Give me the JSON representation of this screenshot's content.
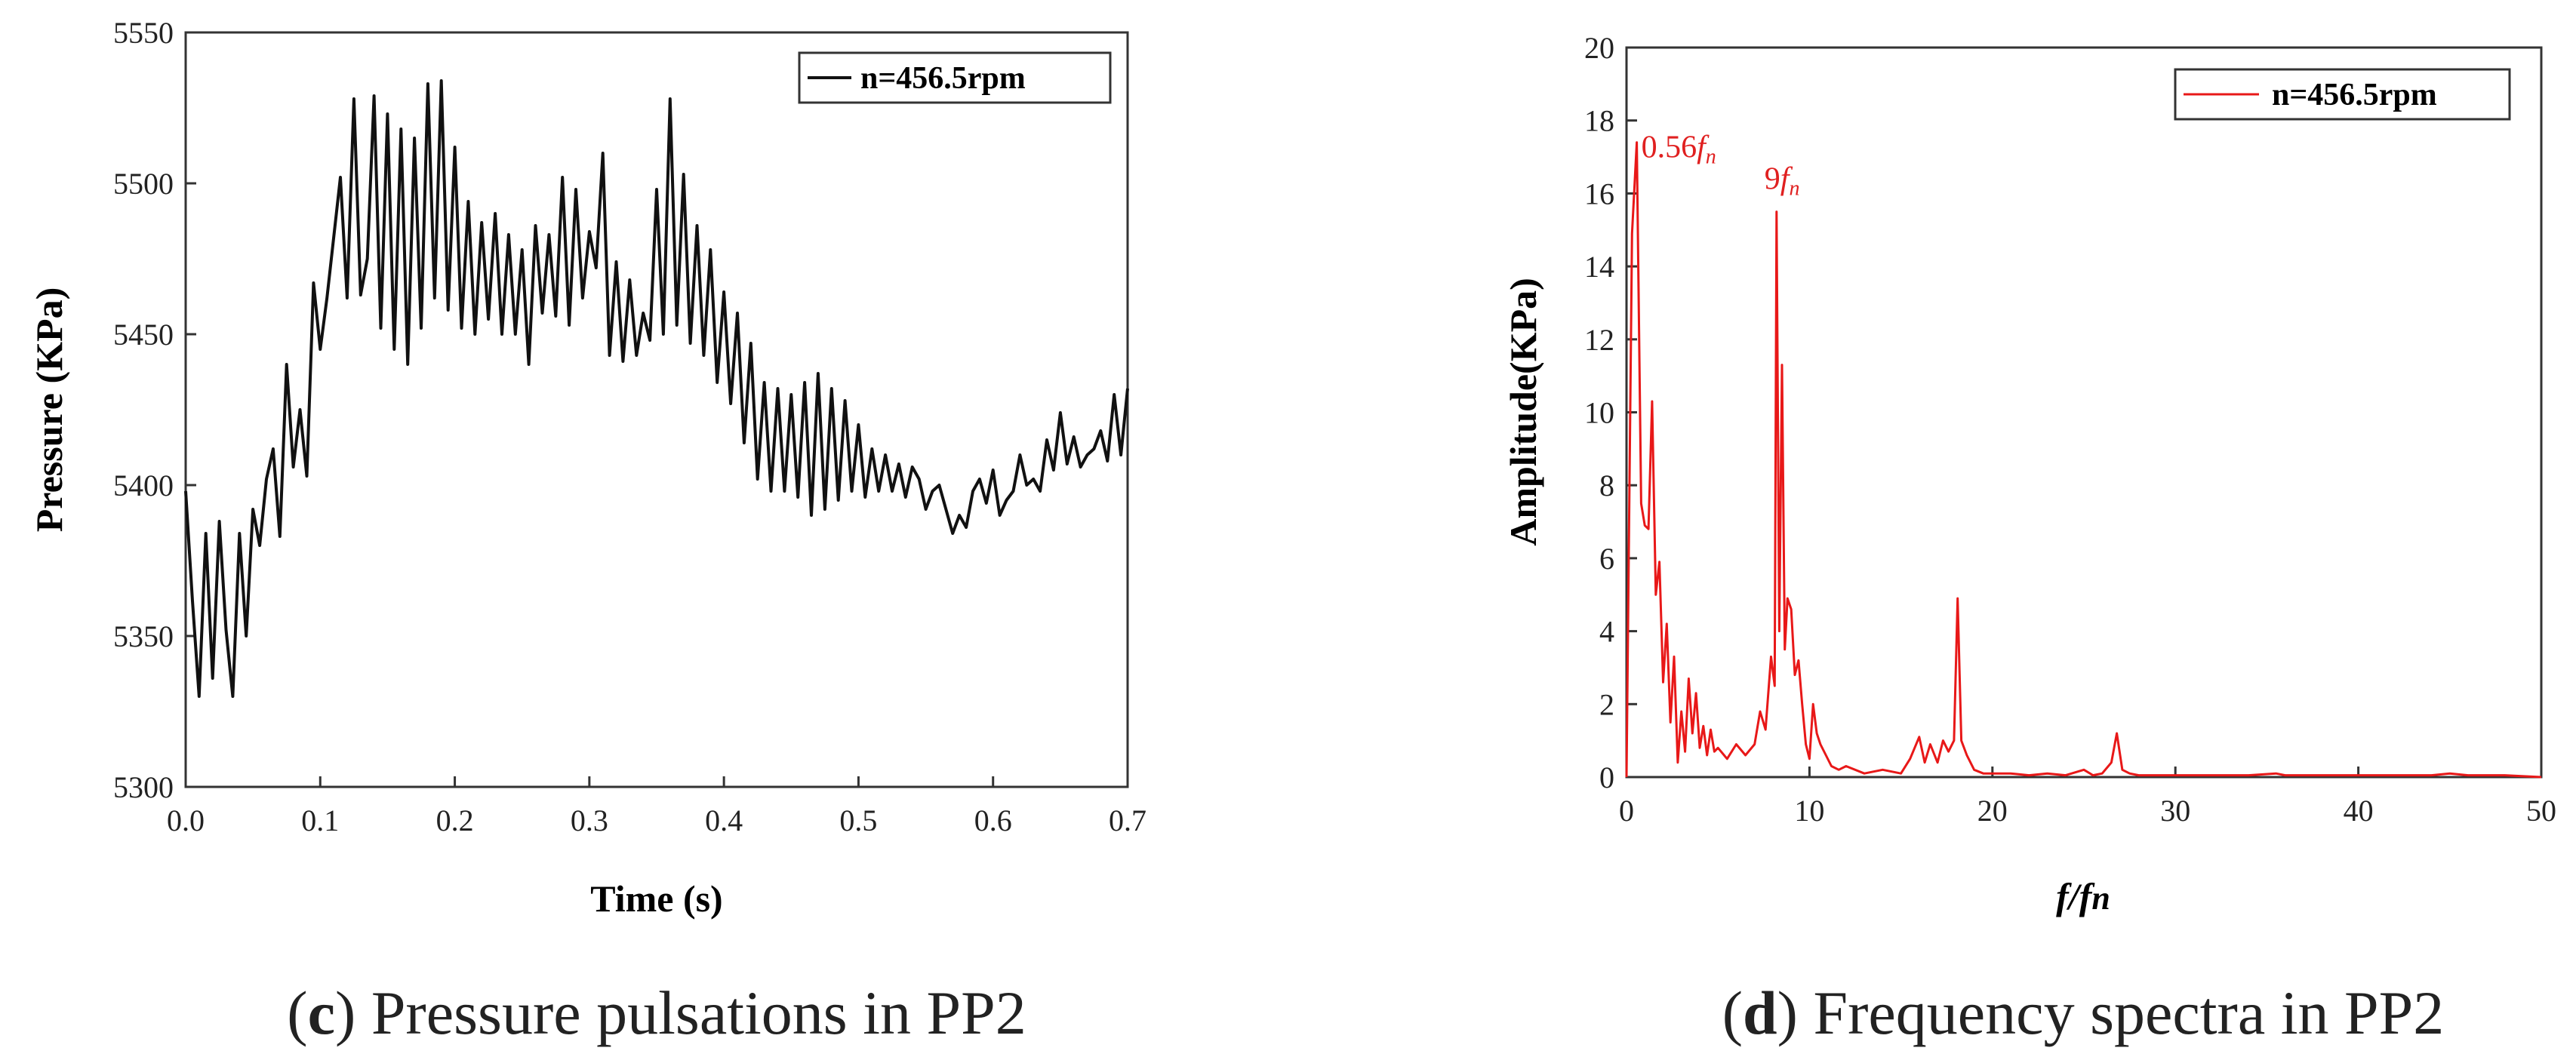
{
  "chart_data": [
    {
      "type": "line",
      "panel": "c",
      "caption_letter": "c",
      "caption_text": " Pressure pulsations in PP2",
      "xlabel": "Time (s)",
      "ylabel": "Pressure (KPa)",
      "xlim": [
        0.0,
        0.7
      ],
      "ylim": [
        5300,
        5550
      ],
      "xticks": [
        "0.0",
        "0.1",
        "0.2",
        "0.3",
        "0.4",
        "0.5",
        "0.6",
        "0.7"
      ],
      "yticks": [
        "5300",
        "5350",
        "5400",
        "5450",
        "5500",
        "5550"
      ],
      "legend_label": "n=456.5rpm",
      "line_color": "#111111",
      "series": [
        {
          "name": "n=456.5rpm",
          "x": [
            0.0,
            0.005,
            0.01,
            0.015,
            0.02,
            0.025,
            0.03,
            0.035,
            0.04,
            0.045,
            0.05,
            0.055,
            0.06,
            0.065,
            0.07,
            0.075,
            0.08,
            0.085,
            0.09,
            0.095,
            0.1,
            0.105,
            0.11,
            0.115,
            0.12,
            0.125,
            0.13,
            0.135,
            0.14,
            0.145,
            0.15,
            0.155,
            0.16,
            0.165,
            0.17,
            0.175,
            0.18,
            0.185,
            0.19,
            0.195,
            0.2,
            0.205,
            0.21,
            0.215,
            0.22,
            0.225,
            0.23,
            0.235,
            0.24,
            0.245,
            0.25,
            0.255,
            0.26,
            0.265,
            0.27,
            0.275,
            0.28,
            0.285,
            0.29,
            0.295,
            0.3,
            0.305,
            0.31,
            0.315,
            0.32,
            0.325,
            0.33,
            0.335,
            0.34,
            0.345,
            0.35,
            0.355,
            0.36,
            0.365,
            0.37,
            0.375,
            0.38,
            0.385,
            0.39,
            0.395,
            0.4,
            0.405,
            0.41,
            0.415,
            0.42,
            0.425,
            0.43,
            0.435,
            0.44,
            0.445,
            0.45,
            0.455,
            0.46,
            0.465,
            0.47,
            0.475,
            0.48,
            0.485,
            0.49,
            0.495,
            0.5,
            0.505,
            0.51,
            0.515,
            0.52,
            0.525,
            0.53,
            0.535,
            0.54,
            0.545,
            0.55,
            0.555,
            0.56,
            0.565,
            0.57,
            0.575,
            0.58,
            0.585,
            0.59,
            0.595,
            0.6,
            0.605,
            0.61,
            0.615,
            0.62,
            0.625,
            0.63,
            0.635,
            0.64,
            0.645,
            0.65,
            0.655,
            0.66,
            0.665,
            0.67,
            0.675,
            0.68,
            0.685,
            0.69,
            0.695,
            0.7
          ],
          "values": [
            5398,
            5362,
            5330,
            5384,
            5336,
            5388,
            5352,
            5330,
            5384,
            5350,
            5392,
            5380,
            5402,
            5412,
            5383,
            5440,
            5406,
            5425,
            5403,
            5467,
            5445,
            5462,
            5482,
            5502,
            5462,
            5528,
            5463,
            5475,
            5529,
            5452,
            5523,
            5445,
            5518,
            5440,
            5515,
            5452,
            5533,
            5462,
            5534,
            5458,
            5512,
            5452,
            5494,
            5450,
            5487,
            5455,
            5490,
            5450,
            5483,
            5450,
            5478,
            5440,
            5486,
            5457,
            5483,
            5456,
            5502,
            5453,
            5498,
            5462,
            5484,
            5472,
            5510,
            5443,
            5474,
            5441,
            5468,
            5443,
            5457,
            5448,
            5498,
            5450,
            5528,
            5453,
            5503,
            5447,
            5486,
            5443,
            5478,
            5434,
            5464,
            5427,
            5457,
            5414,
            5447,
            5402,
            5434,
            5398,
            5432,
            5398,
            5430,
            5396,
            5434,
            5390,
            5437,
            5392,
            5432,
            5395,
            5428,
            5398,
            5420,
            5396,
            5412,
            5398,
            5410,
            5398,
            5407,
            5396,
            5406,
            5402,
            5392,
            5398,
            5400,
            5392,
            5384,
            5390,
            5386,
            5398,
            5402,
            5394,
            5405,
            5390,
            5395,
            5398,
            5410,
            5400,
            5402,
            5398,
            5415,
            5405,
            5424,
            5407,
            5416,
            5406,
            5410,
            5412,
            5418,
            5408,
            5430,
            5410,
            5432
          ]
        }
      ]
    },
    {
      "type": "line",
      "panel": "d",
      "caption_letter": "d",
      "caption_text": " Frequency spectra in PP2",
      "xlabel_f": "f",
      "xlabel_sep": "/",
      "xlabel_fn": "f",
      "xlabel_sub": "n",
      "ylabel": "Amplitude(KPa)",
      "xlim": [
        0,
        50
      ],
      "ylim": [
        0,
        20
      ],
      "xticks": [
        "0",
        "10",
        "20",
        "30",
        "40",
        "50"
      ],
      "yticks": [
        "0",
        "2",
        "4",
        "6",
        "8",
        "10",
        "12",
        "14",
        "16",
        "18",
        "20"
      ],
      "legend_label": "n=456.5rpm",
      "line_color": "#e81818",
      "annotations": [
        {
          "coef": "0.56",
          "f": "f",
          "sub": "n",
          "x": 0.56,
          "y": 17.4
        },
        {
          "coef": "9",
          "f": "f",
          "sub": "n",
          "x": 8.2,
          "y": 15.5
        }
      ],
      "series": [
        {
          "name": "n=456.5rpm",
          "x": [
            0.0,
            0.3,
            0.56,
            0.8,
            1.0,
            1.2,
            1.4,
            1.6,
            1.8,
            2.0,
            2.2,
            2.4,
            2.6,
            2.8,
            3.0,
            3.2,
            3.4,
            3.6,
            3.8,
            4.0,
            4.2,
            4.4,
            4.6,
            4.8,
            5.0,
            5.5,
            6.0,
            6.5,
            7.0,
            7.3,
            7.6,
            7.9,
            8.1,
            8.2,
            8.35,
            8.5,
            8.65,
            8.8,
            9.0,
            9.2,
            9.4,
            9.6,
            9.8,
            10.0,
            10.2,
            10.4,
            10.6,
            10.9,
            11.2,
            11.6,
            12.0,
            13.0,
            14.0,
            15.0,
            15.5,
            16.0,
            16.3,
            16.6,
            17.0,
            17.3,
            17.6,
            17.9,
            18.1,
            18.3,
            18.6,
            19.0,
            19.5,
            20.0,
            21.0,
            22.0,
            23.0,
            24.0,
            25.0,
            25.5,
            26.0,
            26.5,
            26.8,
            27.1,
            27.5,
            28.0,
            29.0,
            30.0,
            32.0,
            34.0,
            35.5,
            36.0,
            38.0,
            40.0,
            42.0,
            44.0,
            45.0,
            46.0,
            48.0,
            50.0
          ],
          "values": [
            0.0,
            14.9,
            17.4,
            7.5,
            6.9,
            6.8,
            10.3,
            5.0,
            5.9,
            2.6,
            4.2,
            1.5,
            3.3,
            0.4,
            1.8,
            0.7,
            2.7,
            1.2,
            2.3,
            0.8,
            1.4,
            0.6,
            1.3,
            0.7,
            0.8,
            0.5,
            0.9,
            0.6,
            0.9,
            1.8,
            1.3,
            3.3,
            2.5,
            15.5,
            4.0,
            11.3,
            3.5,
            4.9,
            4.6,
            2.8,
            3.2,
            2.0,
            0.9,
            0.5,
            2.0,
            1.2,
            0.9,
            0.6,
            0.3,
            0.2,
            0.3,
            0.1,
            0.2,
            0.1,
            0.5,
            1.1,
            0.4,
            0.9,
            0.4,
            1.0,
            0.7,
            1.0,
            4.9,
            1.0,
            0.6,
            0.2,
            0.1,
            0.1,
            0.1,
            0.05,
            0.1,
            0.05,
            0.2,
            0.05,
            0.1,
            0.4,
            1.2,
            0.2,
            0.1,
            0.05,
            0.05,
            0.05,
            0.05,
            0.05,
            0.1,
            0.05,
            0.05,
            0.05,
            0.05,
            0.05,
            0.1,
            0.05,
            0.05,
            0.0
          ]
        }
      ]
    }
  ]
}
